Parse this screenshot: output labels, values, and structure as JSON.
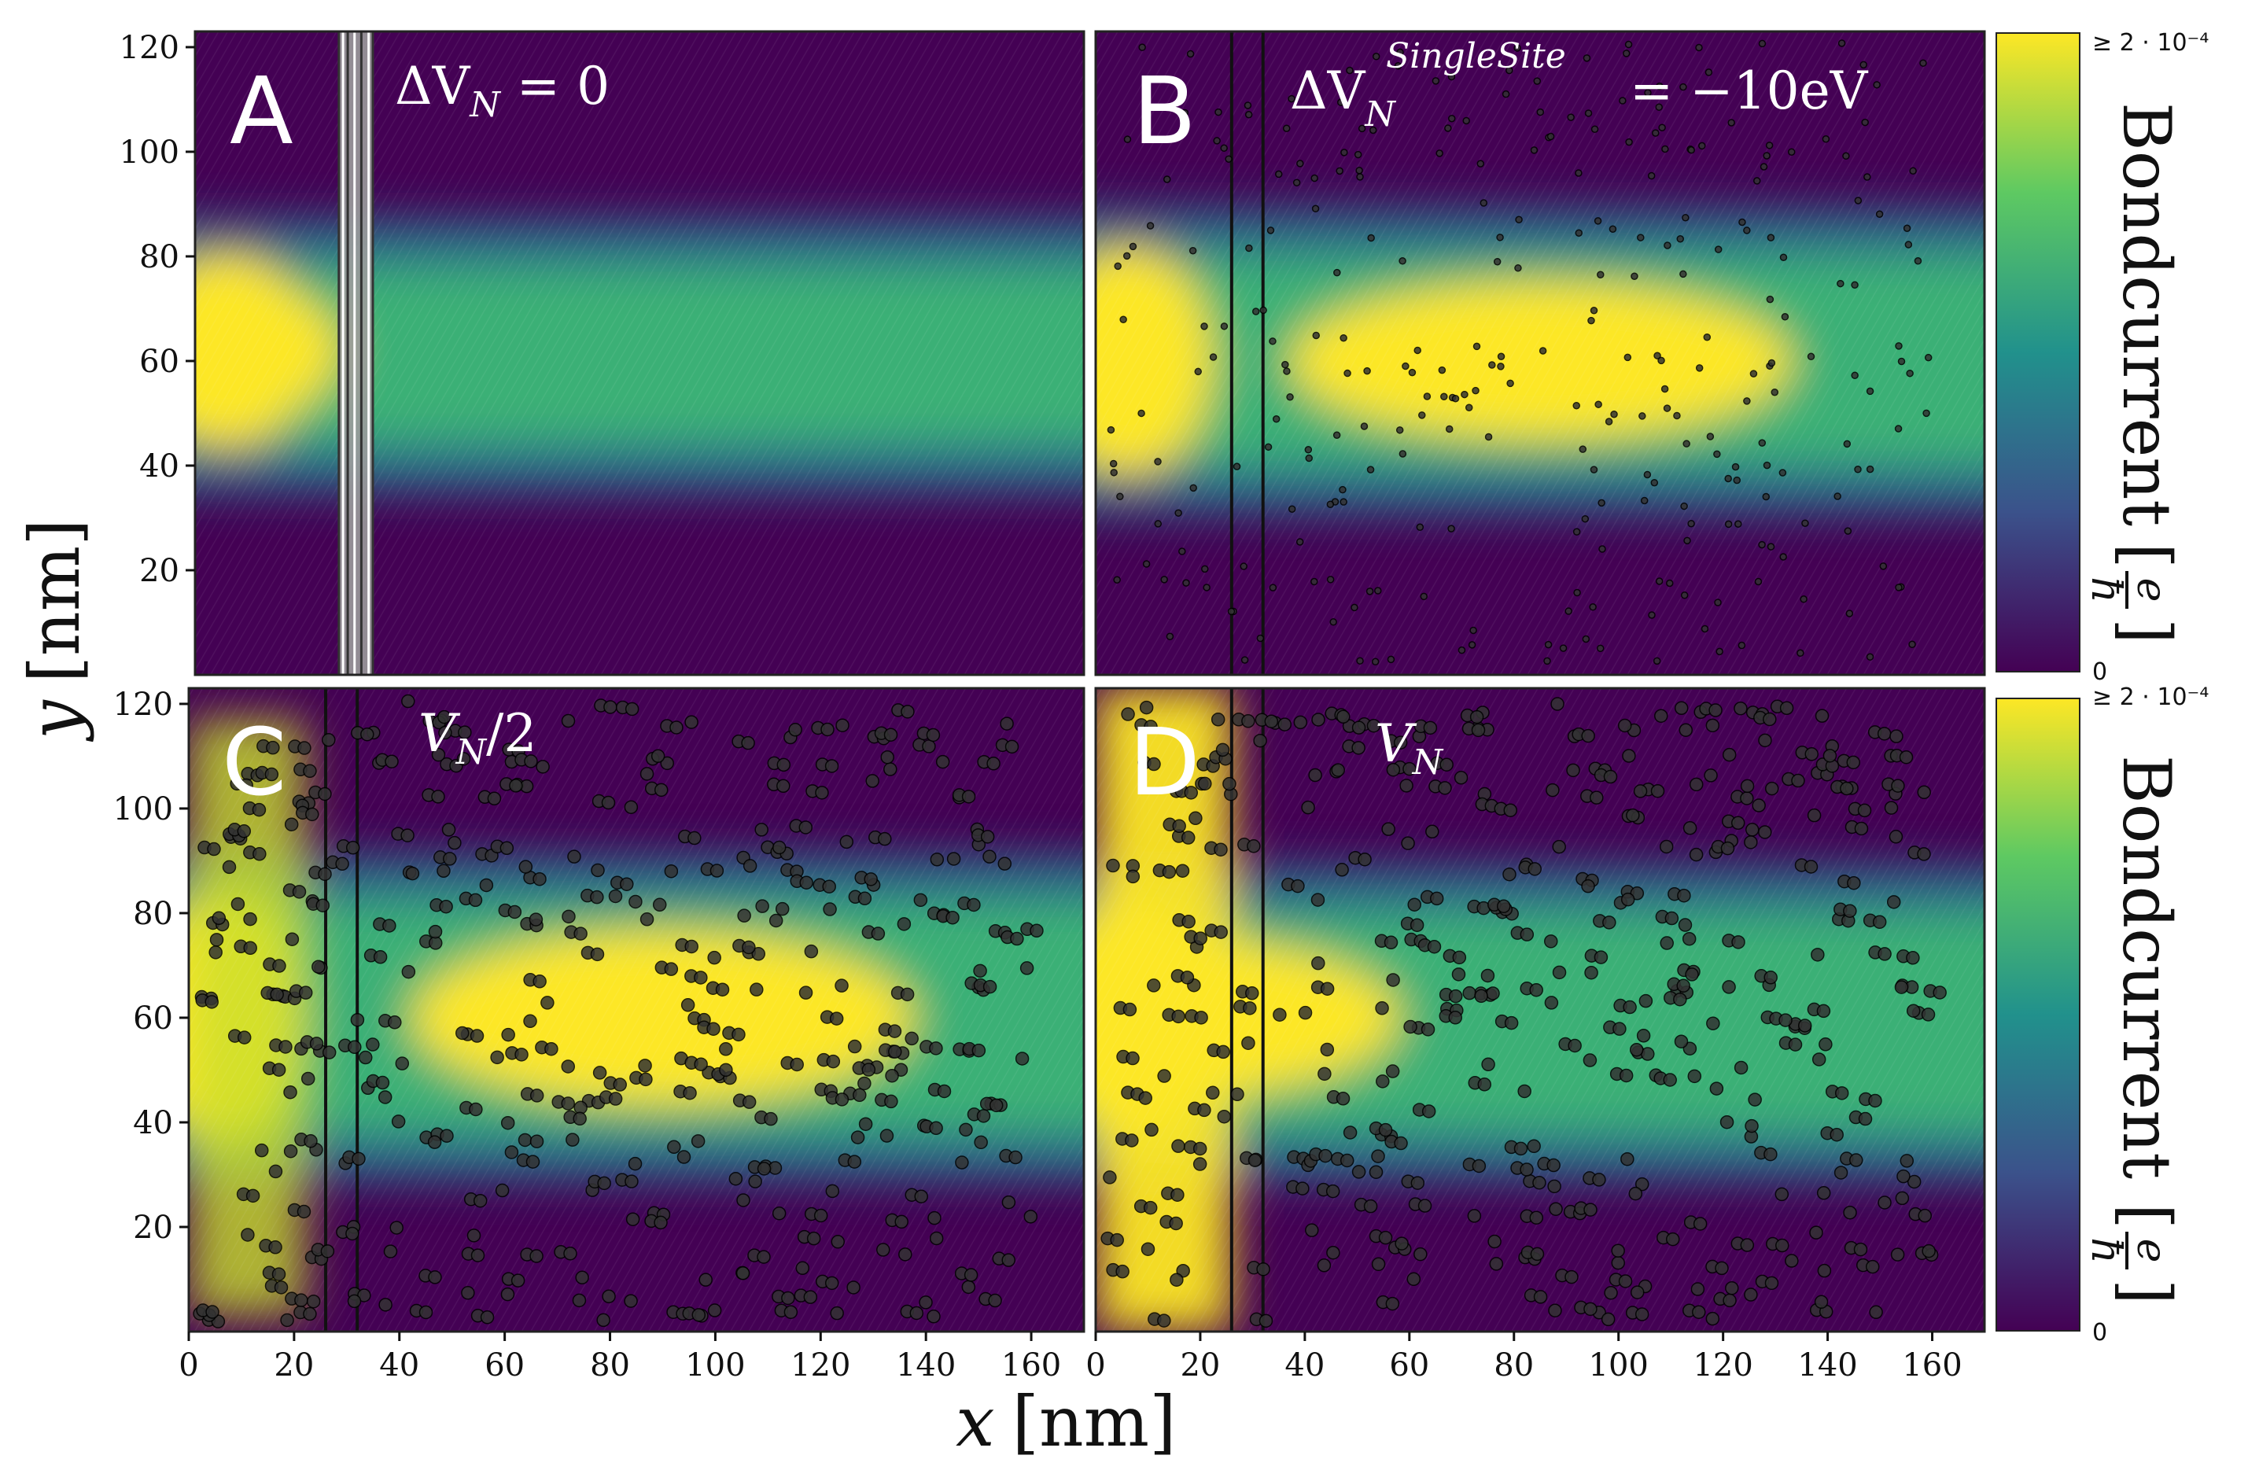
{
  "chart_data": {
    "type": "heatmap",
    "shared_axes": {
      "xlabel_var": "x",
      "xlabel_unit": "[nm]",
      "ylabel_var": "y",
      "ylabel_unit": "[nm]",
      "xlim": [
        0,
        170
      ],
      "ylim": [
        0,
        123
      ],
      "xticks": [
        0,
        20,
        40,
        60,
        80,
        100,
        120,
        140,
        160
      ],
      "yticks": [
        20,
        40,
        60,
        80,
        100,
        120
      ]
    },
    "colorbar": {
      "label": "Bondcurrent",
      "unit_numerator": "e",
      "unit_denominator": "ħ",
      "min_label": "0",
      "max_label": "≥ 2 · 10⁻⁴",
      "min": 0,
      "max": 0.0002,
      "colormap": "viridis"
    },
    "lead_interface_lines_x": [
      26,
      32
    ],
    "panels": [
      {
        "letter": "A",
        "title_main": "ΔV",
        "title_sub": "N",
        "title_sup": "",
        "title_rest": " = 0",
        "impurities": "none",
        "beam": {
          "center_y": 62,
          "upper_edge_y": 78,
          "lower_edge_y": 44,
          "peak_x": 10
        }
      },
      {
        "letter": "B",
        "title_main": "ΔV",
        "title_sub": "N",
        "title_sup": "SingleSite",
        "title_rest": " = −10eV",
        "impurities": "sparse single sites",
        "beam": {
          "center_y": 60,
          "upper_edge_y": 80,
          "lower_edge_y": 40,
          "peak_x": 85
        }
      },
      {
        "letter": "C",
        "title_main": "V",
        "title_sub": "N",
        "title_sup": "",
        "title_rest": "/2",
        "impurities": "dense clusters",
        "beam": {
          "center_y": 60,
          "upper_edge_y": 82,
          "lower_edge_y": 38,
          "peak_x": 90
        }
      },
      {
        "letter": "D",
        "title_main": "V",
        "title_sub": "N",
        "title_sup": "",
        "title_rest": "",
        "impurities": "dense clusters",
        "beam": {
          "center_y": 60,
          "upper_edge_y": 80,
          "lower_edge_y": 38,
          "peak_x": 10
        }
      }
    ]
  },
  "colors": {
    "viridis_low": "#440154",
    "viridis_mid": "#21918c",
    "viridis_high": "#fde725",
    "impurity": "#333333",
    "interface": "#111111"
  }
}
